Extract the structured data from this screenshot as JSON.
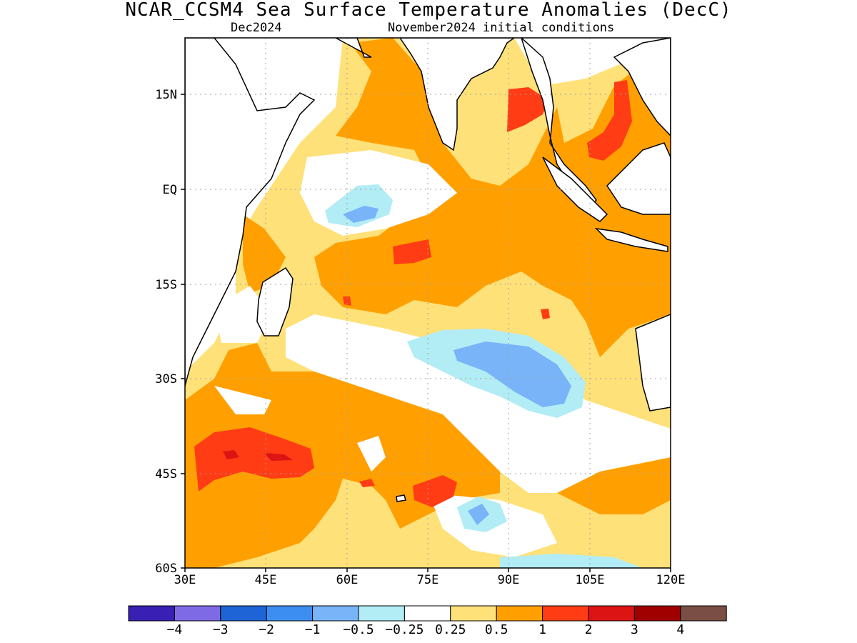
{
  "header": {
    "title": "NCAR_CCSM4 Sea Surface Temperature Anomalies (DecC)",
    "target_month": "Dec2024",
    "initial_conditions": "November2024 initial conditions"
  },
  "map": {
    "region": "Indian Ocean",
    "lat_labels": [
      "15N",
      "EQ",
      "15S",
      "30S",
      "45S",
      "60S"
    ],
    "lon_labels": [
      "30E",
      "45E",
      "60E",
      "75E",
      "90E",
      "105E",
      "120E"
    ],
    "grid": "dotted",
    "land_color": "#ffffff",
    "coastline_color": "#000000"
  },
  "legend": {
    "colors": [
      "#3a1fb4",
      "#7f6ae6",
      "#1e64d7",
      "#3c8ff0",
      "#78b4f7",
      "#b2ecf5",
      "#ffffff",
      "#ffe17a",
      "#ffa000",
      "#ff3c14",
      "#dc1414",
      "#a00000",
      "#7a4e44"
    ],
    "labels": [
      "−4",
      "−3",
      "−2",
      "−1",
      "−0.5",
      "−0.25",
      "0.25",
      "0.5",
      "1",
      "2",
      "3",
      "4"
    ]
  }
}
